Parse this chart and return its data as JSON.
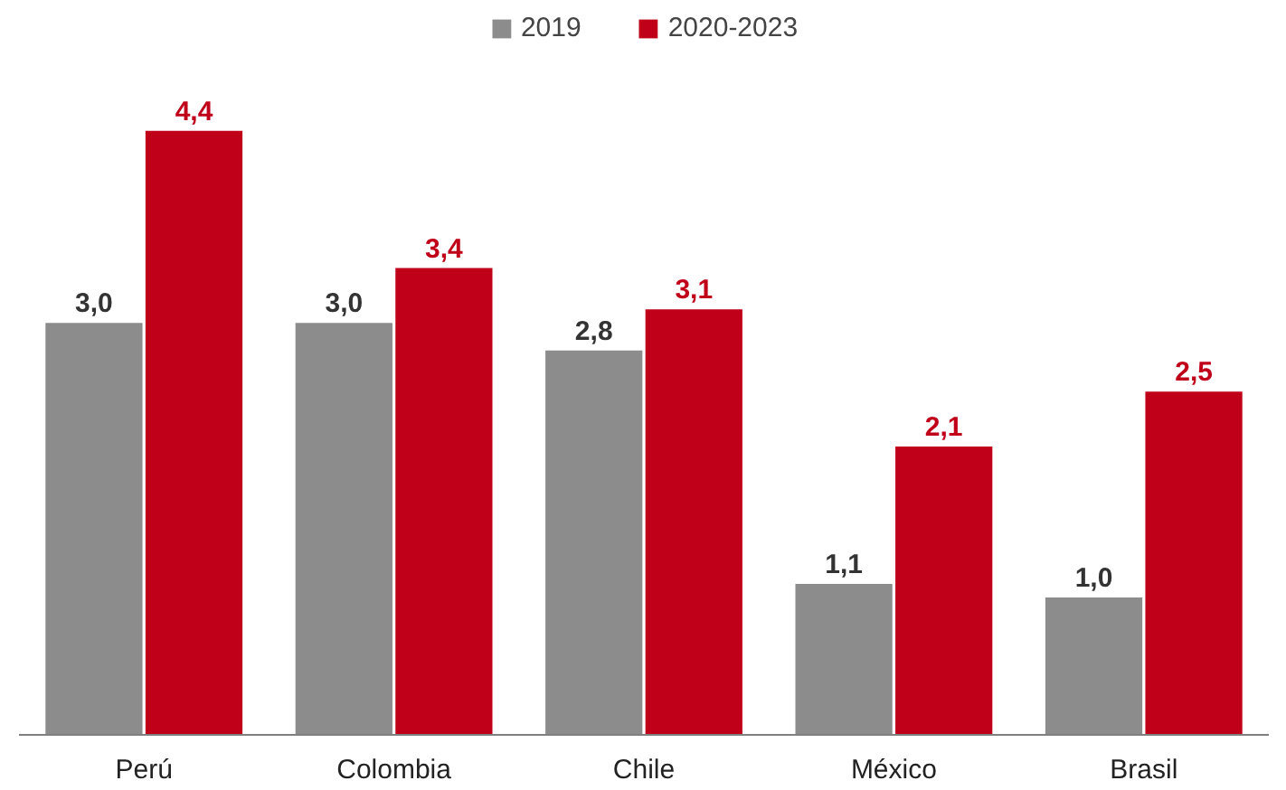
{
  "chart_data": {
    "type": "bar",
    "categories": [
      "Perú",
      "Colombia",
      "Chile",
      "México",
      "Brasil"
    ],
    "series": [
      {
        "name": "2019",
        "color": "#8c8c8c",
        "values": [
          3.0,
          3.0,
          2.8,
          1.1,
          1.0
        ],
        "value_labels": [
          "3,0",
          "3,0",
          "2,8",
          "1,1",
          "1,0"
        ]
      },
      {
        "name": "2020-2023",
        "color": "#c00018",
        "values": [
          4.4,
          3.4,
          3.1,
          2.1,
          2.5
        ],
        "value_labels": [
          "4,4",
          "3,4",
          "3,1",
          "2,1",
          "2,5"
        ]
      }
    ],
    "legend": "top",
    "grid": false,
    "tick_labels": "x"
  }
}
